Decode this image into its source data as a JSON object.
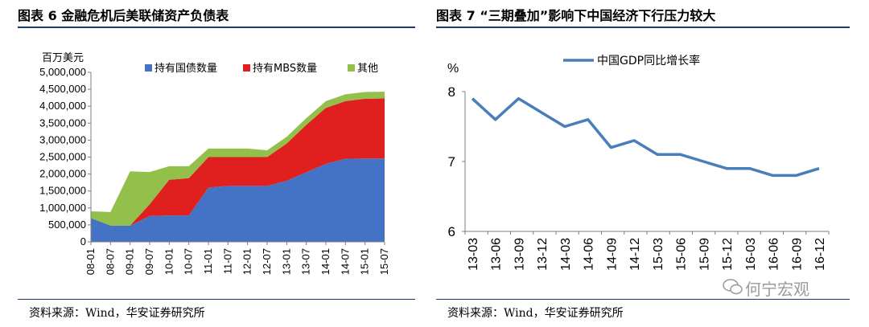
{
  "left_panel": {
    "title": "图表 6  金融危机后美联储资产负债表",
    "source": "资料来源：Wind，华安证券研究所"
  },
  "right_panel": {
    "title": "图表 7  “三期叠加”影响下中国经济下行压力较大",
    "source": "资料来源：Wind，华安证券研究所"
  },
  "watermark": "何宁宏观",
  "colors": {
    "treasury": "#4472c4",
    "mbs": "#e0201f",
    "other": "#92c04b",
    "gdp_line": "#4a7ebb",
    "rule": "#1f3b6e"
  },
  "chart_data": [
    {
      "type": "area",
      "stacked": true,
      "ylabel": "百万美元",
      "ylim": [
        0,
        5000000
      ],
      "yticks": [
        "0",
        "500,000",
        "1,000,000",
        "1,500,000",
        "2,000,000",
        "2,500,000",
        "3,000,000",
        "3,500,000",
        "4,000,000",
        "4,500,000",
        "5,000,000"
      ],
      "categories": [
        "08-01",
        "08-07",
        "09-01",
        "09-07",
        "10-01",
        "10-07",
        "11-01",
        "11-07",
        "12-01",
        "12-07",
        "13-01",
        "13-07",
        "14-01",
        "14-07",
        "15-01",
        "15-07"
      ],
      "legend": [
        "持有国债数量",
        "持有MBS数量",
        "其他"
      ],
      "series": [
        {
          "name": "持有国债数量",
          "values": [
            700000,
            480000,
            480000,
            760000,
            780000,
            780000,
            1600000,
            1650000,
            1650000,
            1650000,
            1800000,
            2050000,
            2300000,
            2450000,
            2460000,
            2460000
          ]
        },
        {
          "name": "持有MBS数量",
          "values": [
            0,
            0,
            0,
            350000,
            1050000,
            1100000,
            900000,
            850000,
            850000,
            850000,
            1100000,
            1400000,
            1650000,
            1700000,
            1760000,
            1770000
          ]
        },
        {
          "name": "其他",
          "values": [
            200000,
            400000,
            1600000,
            950000,
            400000,
            350000,
            250000,
            250000,
            250000,
            200000,
            200000,
            200000,
            200000,
            200000,
            200000,
            200000
          ]
        }
      ]
    },
    {
      "type": "line",
      "ylabel": "%",
      "ylim": [
        6,
        8
      ],
      "yticks": [
        "6",
        "7",
        "8"
      ],
      "categories": [
        "13-03",
        "13-06",
        "13-09",
        "13-12",
        "14-03",
        "14-06",
        "14-09",
        "14-12",
        "15-03",
        "15-06",
        "15-09",
        "15-12",
        "16-03",
        "16-06",
        "16-09",
        "16-12"
      ],
      "legend": [
        "中国GDP同比增长率"
      ],
      "series": [
        {
          "name": "中国GDP同比增长率",
          "values": [
            7.9,
            7.6,
            7.9,
            7.7,
            7.5,
            7.6,
            7.2,
            7.3,
            7.1,
            7.1,
            7.0,
            6.9,
            6.9,
            6.8,
            6.8,
            6.9
          ]
        }
      ]
    }
  ]
}
